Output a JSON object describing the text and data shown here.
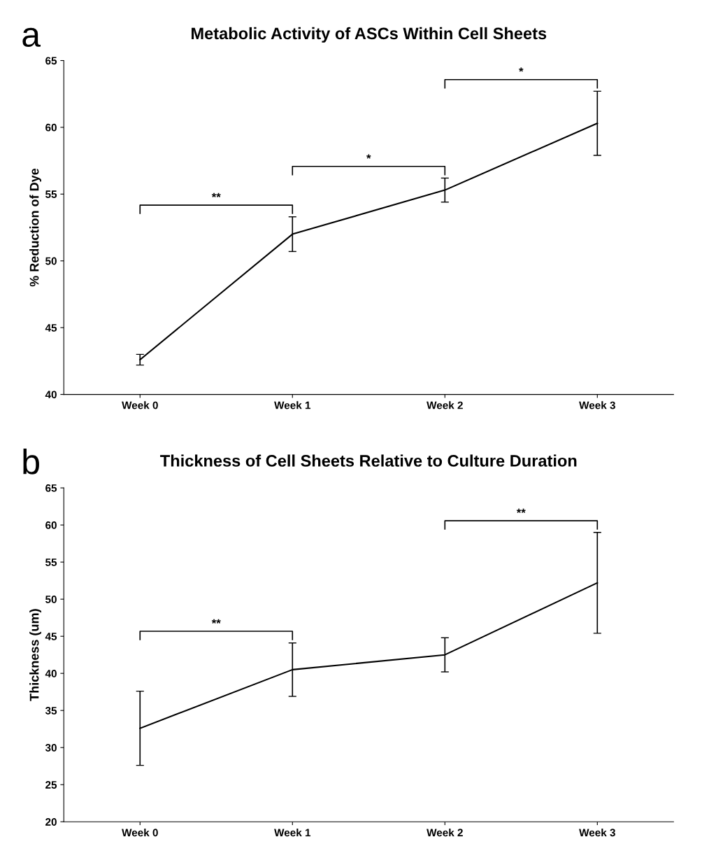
{
  "chart_data": [
    {
      "type": "line",
      "title": "Metabolic Activity of ASCs Within Cell Sheets",
      "ylabel": "% Reduction of Dye",
      "categories": [
        "Week 0",
        "Week 1",
        "Week 2",
        "Week 3"
      ],
      "series": [
        {
          "color": "#000000",
          "values": [
            42.6,
            52.0,
            55.3,
            60.3
          ],
          "errors": [
            0.4,
            1.3,
            0.9,
            2.4
          ]
        }
      ],
      "ylim": [
        40,
        65
      ],
      "yticks": [
        40,
        45,
        50,
        55,
        60,
        65
      ],
      "grid": false,
      "legend": false,
      "marker": "none",
      "line_style": "solid",
      "annotations": [
        "a",
        "**",
        "*",
        "*"
      ]
    },
    {
      "type": "line",
      "title": "Thickness of Cell Sheets Relative to Culture Duration",
      "ylabel": "Thickness (um)",
      "categories": [
        "Week 0",
        "Week 1",
        "Week 2",
        "Week 3"
      ],
      "series": [
        {
          "color": "#000000",
          "values": [
            32.6,
            40.5,
            42.5,
            52.2
          ],
          "errors": [
            5.0,
            3.6,
            2.3,
            6.8
          ]
        }
      ],
      "ylim": [
        20,
        65
      ],
      "yticks": [
        20,
        25,
        30,
        35,
        40,
        45,
        50,
        55,
        60,
        65
      ],
      "grid": false,
      "legend": false,
      "marker": "none",
      "line_style": "solid",
      "annotations": [
        "b",
        "**",
        "**"
      ]
    }
  ]
}
